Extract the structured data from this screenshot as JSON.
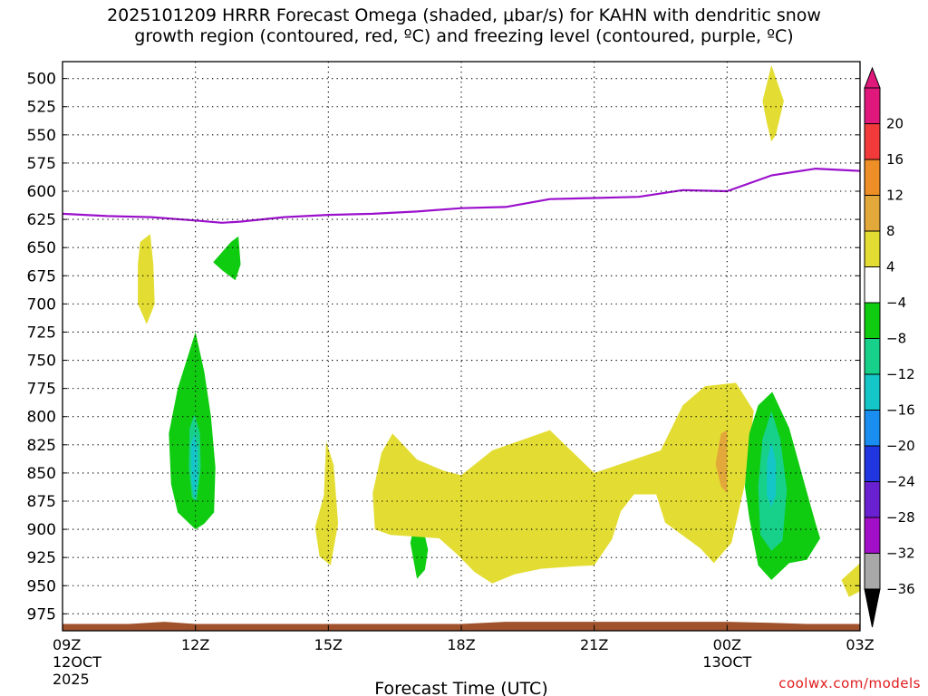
{
  "title_line1": "2025101209 HRRR Forecast Omega (shaded, μbar/s) for KAHN with dendritic snow",
  "title_line2": "growth region (contoured, red, ºC) and freezing level (contoured, purple, ºC)",
  "watermark": "coolwx.com/models",
  "chart_data": {
    "type": "heatmap",
    "xlabel": "Forecast Time (UTC)",
    "x_range_hours": [
      0,
      18
    ],
    "x_ticks": [
      {
        "hour": 0,
        "label": "09Z",
        "sub1": "12OCT",
        "sub2": "2025"
      },
      {
        "hour": 3,
        "label": "12Z",
        "sub1": "",
        "sub2": ""
      },
      {
        "hour": 6,
        "label": "15Z",
        "sub1": "",
        "sub2": ""
      },
      {
        "hour": 9,
        "label": "18Z",
        "sub1": "",
        "sub2": ""
      },
      {
        "hour": 12,
        "label": "21Z",
        "sub1": "",
        "sub2": ""
      },
      {
        "hour": 15,
        "label": "00Z",
        "sub1": "13OCT",
        "sub2": ""
      },
      {
        "hour": 18,
        "label": "03Z",
        "sub1": "",
        "sub2": ""
      }
    ],
    "y_range_mb": [
      990,
      485
    ],
    "y_ticks": [
      500,
      525,
      550,
      575,
      600,
      625,
      650,
      675,
      700,
      725,
      750,
      775,
      800,
      825,
      850,
      875,
      900,
      925,
      950,
      975
    ],
    "colorbar": {
      "labels": [
        "20",
        "16",
        "12",
        "8",
        "4",
        "−4",
        "−8",
        "−12",
        "−16",
        "−20",
        "−24",
        "−28",
        "−32",
        "−36"
      ],
      "bands": [
        {
          "from": 20,
          "to": 24,
          "color": "#e0187c"
        },
        {
          "from": 16,
          "to": 20,
          "color": "#f23a3a"
        },
        {
          "from": 12,
          "to": 16,
          "color": "#ed8e27"
        },
        {
          "from": 8,
          "to": 12,
          "color": "#e2a93a"
        },
        {
          "from": 4,
          "to": 8,
          "color": "#e3dd33"
        },
        {
          "from": -4,
          "to": 4,
          "color": "#ffffff"
        },
        {
          "from": -8,
          "to": -4,
          "color": "#10cc10"
        },
        {
          "from": -12,
          "to": -8,
          "color": "#17d08a"
        },
        {
          "from": -16,
          "to": -12,
          "color": "#15c6c8"
        },
        {
          "from": -20,
          "to": -16,
          "color": "#1a8ef0"
        },
        {
          "from": -24,
          "to": -20,
          "color": "#2036e0"
        },
        {
          "from": -28,
          "to": -24,
          "color": "#6820d0"
        },
        {
          "from": -32,
          "to": -28,
          "color": "#a20fc8"
        },
        {
          "from": -36,
          "to": -32,
          "color": "#a8a8a8"
        }
      ]
    },
    "freezing_level": {
      "color": "#9b10cc",
      "points": [
        [
          0,
          620
        ],
        [
          1,
          622
        ],
        [
          2,
          623
        ],
        [
          3,
          626
        ],
        [
          3.6,
          628
        ],
        [
          4,
          627
        ],
        [
          5,
          623
        ],
        [
          6,
          621
        ],
        [
          7,
          620
        ],
        [
          8,
          618
        ],
        [
          9,
          615
        ],
        [
          10,
          614
        ],
        [
          11,
          607
        ],
        [
          12,
          606
        ],
        [
          13,
          605
        ],
        [
          14,
          599
        ],
        [
          15,
          600
        ],
        [
          16,
          586
        ],
        [
          17,
          580
        ],
        [
          18,
          582
        ]
      ]
    },
    "omega_regions": [
      {
        "name": "upward-motion-4-8",
        "value_range": [
          4,
          8
        ],
        "color": "#e3dd33",
        "points": [
          [
            1.75,
            645
          ],
          [
            1.98,
            638
          ],
          [
            2.05,
            665
          ],
          [
            2.08,
            700
          ],
          [
            1.9,
            718
          ],
          [
            1.7,
            700
          ],
          [
            1.7,
            665
          ]
        ]
      },
      {
        "name": "downward-motion-4-8",
        "value_range": [
          -8,
          -4
        ],
        "color": "#10cc10",
        "points": [
          [
            3.4,
            663
          ],
          [
            3.8,
            645
          ],
          [
            3.97,
            640
          ],
          [
            4.02,
            665
          ],
          [
            3.9,
            679
          ],
          [
            3.6,
            670
          ]
        ]
      },
      {
        "name": "downward-motion-4-8",
        "value_range": [
          -8,
          -4
        ],
        "color": "#10cc10",
        "points": [
          [
            3.0,
            725
          ],
          [
            3.2,
            760
          ],
          [
            3.35,
            800
          ],
          [
            3.45,
            845
          ],
          [
            3.42,
            885
          ],
          [
            3.2,
            895
          ],
          [
            3.0,
            900
          ],
          [
            2.6,
            885
          ],
          [
            2.45,
            860
          ],
          [
            2.4,
            815
          ],
          [
            2.6,
            775
          ]
        ]
      },
      {
        "name": "downward-motion-8-12",
        "value_range": [
          -12,
          -8
        ],
        "color": "#17d08a",
        "points": [
          [
            2.87,
            810
          ],
          [
            2.98,
            798
          ],
          [
            3.1,
            815
          ],
          [
            3.12,
            845
          ],
          [
            3.03,
            875
          ],
          [
            2.92,
            872
          ],
          [
            2.85,
            845
          ]
        ]
      },
      {
        "name": "downward-motion-12-16",
        "value_range": [
          -16,
          -12
        ],
        "color": "#15c6c8",
        "points": [
          [
            2.9,
            825
          ],
          [
            2.98,
            815
          ],
          [
            3.05,
            830
          ],
          [
            3.05,
            858
          ],
          [
            2.98,
            874
          ],
          [
            2.91,
            858
          ]
        ]
      },
      {
        "name": "upward-motion-4-8",
        "value_range": [
          4,
          8
        ],
        "color": "#e3dd33",
        "points": [
          [
            5.95,
            822
          ],
          [
            6.12,
            843
          ],
          [
            6.22,
            895
          ],
          [
            6.05,
            932
          ],
          [
            5.8,
            924
          ],
          [
            5.7,
            898
          ],
          [
            5.9,
            870
          ]
        ]
      },
      {
        "name": "downward-motion-4-8",
        "value_range": [
          -8,
          -4
        ],
        "color": "#10cc10",
        "points": [
          [
            8.03,
            880
          ],
          [
            8.25,
            918
          ],
          [
            8.18,
            936
          ],
          [
            8.0,
            944
          ],
          [
            7.85,
            912
          ]
        ]
      },
      {
        "name": "upward-motion-4-8",
        "value_range": [
          4,
          8
        ],
        "color": "#e3dd33",
        "points": [
          [
            9.0,
            852
          ],
          [
            9.7,
            830
          ],
          [
            11,
            812
          ],
          [
            12,
            850
          ],
          [
            13.5,
            830
          ],
          [
            14,
            790
          ],
          [
            14.5,
            773
          ],
          [
            15.2,
            770
          ],
          [
            15.6,
            795
          ],
          [
            15.4,
            860
          ],
          [
            15.1,
            912
          ],
          [
            14.7,
            930
          ],
          [
            14.4,
            917
          ],
          [
            13.6,
            894
          ],
          [
            13.4,
            869
          ],
          [
            12.9,
            869
          ],
          [
            12.6,
            884
          ],
          [
            12.4,
            909
          ],
          [
            12,
            932
          ],
          [
            11.5,
            933
          ],
          [
            10.8,
            935
          ],
          [
            10.2,
            940
          ],
          [
            9.7,
            948
          ],
          [
            9.3,
            938
          ],
          [
            8.9,
            922
          ],
          [
            8.5,
            908
          ],
          [
            7.4,
            905
          ],
          [
            7.05,
            900
          ],
          [
            7.0,
            868
          ],
          [
            7.2,
            832
          ],
          [
            7.45,
            815
          ],
          [
            8.0,
            838
          ],
          [
            8.6,
            848
          ]
        ]
      },
      {
        "name": "upward-motion-8-12",
        "value_range": [
          8,
          12
        ],
        "color": "#e2a93a",
        "points": [
          [
            14.86,
            815
          ],
          [
            15.0,
            812
          ],
          [
            15.0,
            868
          ],
          [
            14.86,
            862
          ],
          [
            14.74,
            842
          ]
        ]
      },
      {
        "name": "downward-motion-4-8",
        "value_range": [
          -8,
          -4
        ],
        "color": "#10cc10",
        "points": [
          [
            16.02,
            778
          ],
          [
            16.4,
            810
          ],
          [
            16.75,
            860
          ],
          [
            17.0,
            895
          ],
          [
            17.1,
            908
          ],
          [
            16.8,
            927
          ],
          [
            16.4,
            930
          ],
          [
            16.0,
            945
          ],
          [
            15.7,
            932
          ],
          [
            15.5,
            890
          ],
          [
            15.4,
            862
          ],
          [
            15.5,
            815
          ],
          [
            15.7,
            790
          ]
        ]
      },
      {
        "name": "downward-motion-8-12",
        "value_range": [
          -12,
          -8
        ],
        "color": "#17d08a",
        "points": [
          [
            16.0,
            795
          ],
          [
            16.2,
            820
          ],
          [
            16.35,
            865
          ],
          [
            16.25,
            910
          ],
          [
            16.0,
            919
          ],
          [
            15.75,
            905
          ],
          [
            15.7,
            862
          ],
          [
            15.8,
            820
          ]
        ]
      },
      {
        "name": "downward-motion-12-16",
        "value_range": [
          -16,
          -12
        ],
        "color": "#15c6c8",
        "points": [
          [
            16.0,
            822
          ],
          [
            16.1,
            840
          ],
          [
            16.1,
            870
          ],
          [
            16.0,
            880
          ],
          [
            15.9,
            870
          ],
          [
            15.9,
            840
          ]
        ]
      },
      {
        "name": "upward-motion-4-8",
        "value_range": [
          4,
          8
        ],
        "color": "#e3dd33",
        "points": [
          [
            16.0,
            488
          ],
          [
            16.28,
            520
          ],
          [
            16.1,
            550
          ],
          [
            16.0,
            556
          ],
          [
            15.9,
            540
          ],
          [
            15.8,
            520
          ]
        ]
      },
      {
        "name": "upward-motion-4-8",
        "value_range": [
          4,
          8
        ],
        "color": "#e3dd33",
        "points": [
          [
            17.58,
            945
          ],
          [
            18,
            930
          ],
          [
            18,
            955
          ],
          [
            17.75,
            960
          ]
        ]
      }
    ],
    "surface_terrain": {
      "color": "#a0522d",
      "points": [
        [
          0,
          984
        ],
        [
          1.5,
          984
        ],
        [
          2.3,
          982
        ],
        [
          3,
          984
        ],
        [
          9,
          984
        ],
        [
          10,
          982
        ],
        [
          15,
          982
        ],
        [
          16,
          983
        ],
        [
          16.8,
          984
        ],
        [
          18,
          984
        ]
      ]
    }
  }
}
